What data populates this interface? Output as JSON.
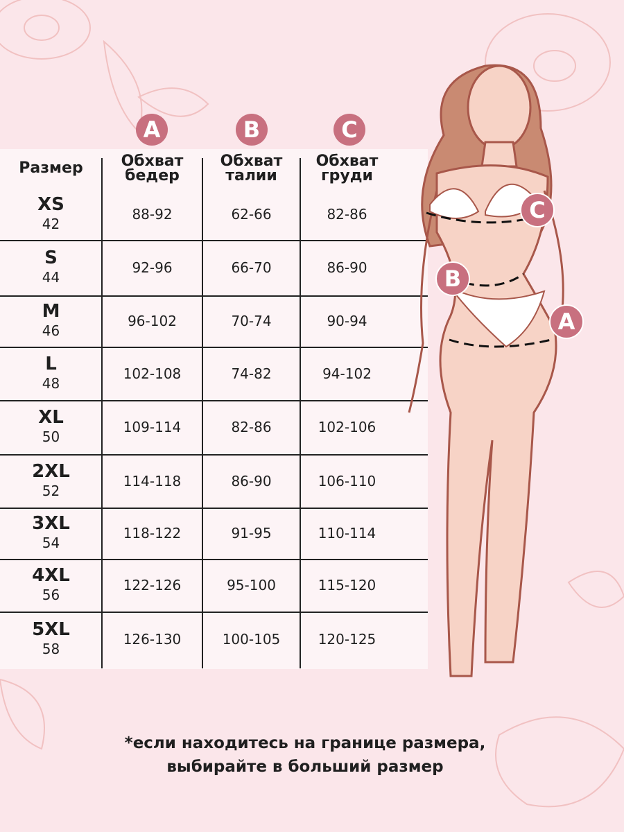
{
  "markers": [
    "A",
    "B",
    "C"
  ],
  "headers": {
    "size": "Размер",
    "hips": [
      "Обхват",
      "бедер"
    ],
    "waist": [
      "Обхват",
      "талии"
    ],
    "chest": [
      "Обхват",
      "груди"
    ]
  },
  "rows": [
    {
      "size": "XS",
      "ru": "42",
      "hips": "88-92",
      "waist": "62-66",
      "chest": "82-86"
    },
    {
      "size": "S",
      "ru": "44",
      "hips": "92-96",
      "waist": "66-70",
      "chest": "86-90"
    },
    {
      "size": "M",
      "ru": "46",
      "hips": "96-102",
      "waist": "70-74",
      "chest": "90-94"
    },
    {
      "size": "L",
      "ru": "48",
      "hips": "102-108",
      "waist": "74-82",
      "chest": "94-102"
    },
    {
      "size": "XL",
      "ru": "50",
      "hips": "109-114",
      "waist": "82-86",
      "chest": "102-106"
    },
    {
      "size": "2XL",
      "ru": "52",
      "hips": "114-118",
      "waist": "86-90",
      "chest": "106-110"
    },
    {
      "size": "3XL",
      "ru": "54",
      "hips": "118-122",
      "waist": "91-95",
      "chest": "110-114"
    },
    {
      "size": "4XL",
      "ru": "56",
      "hips": "122-126",
      "waist": "95-100",
      "chest": "115-120"
    },
    {
      "size": "5XL",
      "ru": "58",
      "hips": "126-130",
      "waist": "100-105",
      "chest": "120-125"
    }
  ],
  "note": [
    "*если находитесь на границе размера,",
    "выбирайте в больший размер"
  ],
  "colors": {
    "background": "#fbe6ea",
    "badge": "#c8707f",
    "skin": "#f7d3c6",
    "outline": "#a8574a"
  }
}
